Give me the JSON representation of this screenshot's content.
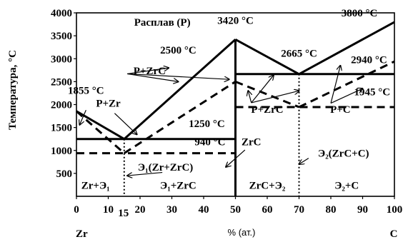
{
  "chart_data": {
    "type": "line",
    "title": "",
    "xlabel": "% (ат.)",
    "ylabel": "Температура, °C",
    "xlim": [
      0,
      100
    ],
    "ylim": [
      0,
      4000
    ],
    "x_ticks": [
      0,
      10,
      20,
      30,
      40,
      50,
      60,
      70,
      80,
      90,
      100
    ],
    "x_extra_tick": 15,
    "y_ticks": [
      500,
      1000,
      1500,
      2000,
      2500,
      3000,
      3500,
      4000
    ],
    "x_left_component": "Zr",
    "x_right_component": "C",
    "series": [
      {
        "style": "solid",
        "points": [
          [
            0,
            1855
          ],
          [
            15,
            1250
          ]
        ]
      },
      {
        "style": "solid",
        "points": [
          [
            15,
            1250
          ],
          [
            50,
            3420
          ]
        ]
      },
      {
        "style": "solid",
        "points": [
          [
            0,
            1250
          ],
          [
            50,
            1250
          ]
        ]
      },
      {
        "style": "solid",
        "points": [
          [
            50,
            3420
          ],
          [
            50,
            0
          ]
        ]
      },
      {
        "style": "solid",
        "points": [
          [
            50,
            2665
          ],
          [
            100,
            2665
          ]
        ]
      },
      {
        "style": "solid",
        "points": [
          [
            50,
            3420
          ],
          [
            70,
            2665
          ]
        ]
      },
      {
        "style": "solid",
        "points": [
          [
            70,
            2665
          ],
          [
            100,
            3800
          ]
        ]
      },
      {
        "style": "dashed",
        "points": [
          [
            0,
            1855
          ],
          [
            15,
            940
          ]
        ]
      },
      {
        "style": "dashed",
        "points": [
          [
            15,
            940
          ],
          [
            50,
            2500
          ]
        ]
      },
      {
        "style": "dashed",
        "points": [
          [
            0,
            940
          ],
          [
            50,
            940
          ]
        ]
      },
      {
        "style": "dashed",
        "points": [
          [
            50,
            2500
          ],
          [
            70,
            1945
          ]
        ]
      },
      {
        "style": "dashed",
        "points": [
          [
            50,
            1945
          ],
          [
            100,
            1945
          ]
        ]
      },
      {
        "style": "dashed",
        "points": [
          [
            70,
            1945
          ],
          [
            100,
            2940
          ]
        ]
      },
      {
        "style": "dotted",
        "points": [
          [
            15,
            1250
          ],
          [
            15,
            0
          ]
        ]
      },
      {
        "style": "dotted",
        "points": [
          [
            70,
            2665
          ],
          [
            70,
            0
          ]
        ]
      }
    ],
    "annotations": [
      {
        "id": "melt",
        "text": "Расплав (Р)",
        "x": 27,
        "y": 3720
      },
      {
        "id": "t3420",
        "text": "3420 °C",
        "x": 50,
        "y": 3760
      },
      {
        "id": "t3800",
        "text": "3800 °C",
        "x": 89,
        "y": 3920
      },
      {
        "id": "t2500",
        "text": "2500 °C",
        "x": 32,
        "y": 3110
      },
      {
        "id": "t2665",
        "text": "2665 °C",
        "x": 70,
        "y": 3040
      },
      {
        "id": "t2940",
        "text": "2940 °C",
        "x": 92,
        "y": 2900
      },
      {
        "id": "pzrc1",
        "text": "Р+ZrC",
        "x": 23,
        "y": 2660
      },
      {
        "id": "t1855",
        "text": "1855 °C",
        "x": 3,
        "y": 2230
      },
      {
        "id": "t1945",
        "text": "1945 °C",
        "x": 93,
        "y": 2200
      },
      {
        "id": "pzr",
        "text": "Р+Zr",
        "x": 10,
        "y": 1950
      },
      {
        "id": "pzrc2",
        "text": "Р+ZrC",
        "x": 60,
        "y": 1820
      },
      {
        "id": "pc",
        "text": "Р+C",
        "x": 83,
        "y": 1820
      },
      {
        "id": "t1250",
        "text": "1250 °C",
        "x": 41,
        "y": 1510
      },
      {
        "id": "t940",
        "text": "940 °C",
        "x": 42,
        "y": 1110
      },
      {
        "id": "zrc",
        "text": "ZrC",
        "x": 55,
        "y": 1110
      },
      {
        "id": "e2",
        "text": "Э₂(ZrC+C)",
        "x": 84,
        "y": 860
      },
      {
        "id": "e1",
        "text": "Э₁(Zr+ZrC)",
        "x": 28,
        "y": 560
      },
      {
        "id": "r1",
        "text": "Zr+Э₁",
        "x": 6,
        "y": 160
      },
      {
        "id": "r2",
        "text": "Э₁+ZrC",
        "x": 32,
        "y": 160
      },
      {
        "id": "r3",
        "text": "ZrC+Э₂",
        "x": 60,
        "y": 160
      },
      {
        "id": "r4",
        "text": "Э₂+C",
        "x": 85,
        "y": 160
      }
    ]
  }
}
